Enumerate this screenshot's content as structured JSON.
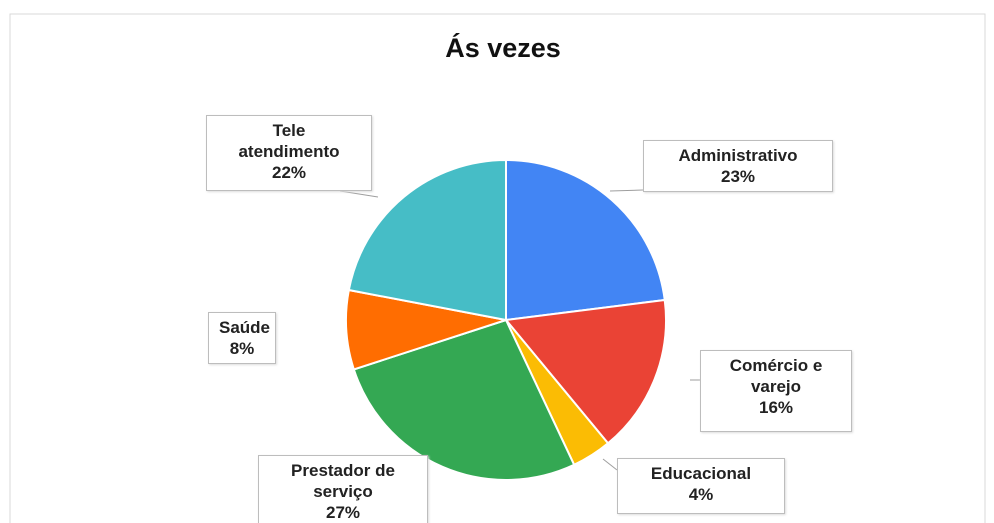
{
  "chart_data": {
    "type": "pie",
    "title": "Ás vezes",
    "categories": [
      "Administrativo",
      "Comércio e varejo",
      "Educacional",
      "Prestador de serviço",
      "Saúde",
      "Tele atendimento"
    ],
    "values": [
      23,
      16,
      4,
      27,
      8,
      22
    ],
    "value_labels": [
      "23%",
      "16%",
      "4%",
      "27%",
      "8%",
      "22%"
    ],
    "colors": [
      "#4285f4",
      "#ea4335",
      "#fbbc04",
      "#34a853",
      "#ff6d01",
      "#46bdc6"
    ]
  }
}
